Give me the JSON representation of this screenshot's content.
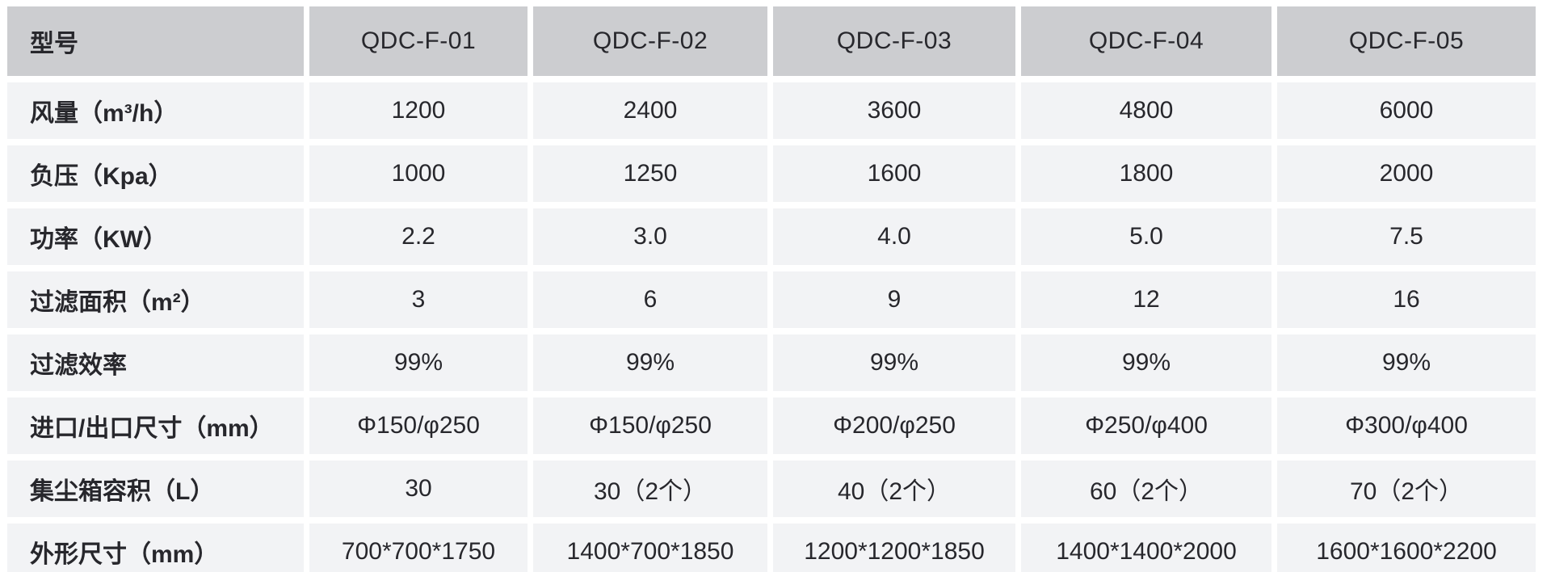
{
  "table": {
    "header": {
      "label": "型号",
      "models": [
        "QDC-F-01",
        "QDC-F-02",
        "QDC-F-03",
        "QDC-F-04",
        "QDC-F-05"
      ]
    },
    "rows": [
      {
        "label": "风量（m³/h）",
        "values": [
          "1200",
          "2400",
          "3600",
          "4800",
          "6000"
        ]
      },
      {
        "label": "负压（Kpa）",
        "values": [
          "1000",
          "1250",
          "1600",
          "1800",
          "2000"
        ]
      },
      {
        "label": "功率（KW）",
        "values": [
          "2.2",
          "3.0",
          "4.0",
          "5.0",
          "7.5"
        ]
      },
      {
        "label": "过滤面积（m²）",
        "values": [
          "3",
          "6",
          "9",
          "12",
          "16"
        ]
      },
      {
        "label": "过滤效率",
        "values": [
          "99%",
          "99%",
          "99%",
          "99%",
          "99%"
        ]
      },
      {
        "label": "进口/出口尺寸（mm）",
        "values": [
          "Φ150/φ250",
          "Φ150/φ250",
          "Φ200/φ250",
          "Φ250/φ400",
          "Φ300/φ400"
        ]
      },
      {
        "label": "集尘箱容积（L）",
        "values": [
          "30",
          "30（2个）",
          "40（2个）",
          "60（2个）",
          "70（2个）"
        ]
      },
      {
        "label": "外形尺寸（mm）",
        "values": [
          "700*700*1750",
          "1400*700*1850",
          "1200*1200*1850",
          "1400*1400*2000",
          "1600*1600*2200"
        ]
      }
    ],
    "colors": {
      "header_bg": "#cccdd0",
      "cell_bg": "#f2f3f5",
      "gutter": "#ffffff",
      "text": "#27272c"
    }
  },
  "chart_data": {
    "type": "table",
    "title": "",
    "columns": [
      "型号",
      "QDC-F-01",
      "QDC-F-02",
      "QDC-F-03",
      "QDC-F-04",
      "QDC-F-05"
    ],
    "rows": [
      [
        "风量（m³/h）",
        "1200",
        "2400",
        "3600",
        "4800",
        "6000"
      ],
      [
        "负压（Kpa）",
        "1000",
        "1250",
        "1600",
        "1800",
        "2000"
      ],
      [
        "功率（KW）",
        "2.2",
        "3.0",
        "4.0",
        "5.0",
        "7.5"
      ],
      [
        "过滤面积（m²）",
        "3",
        "6",
        "9",
        "12",
        "16"
      ],
      [
        "过滤效率",
        "99%",
        "99%",
        "99%",
        "99%",
        "99%"
      ],
      [
        "进口/出口尺寸（mm）",
        "Φ150/φ250",
        "Φ150/φ250",
        "Φ200/φ250",
        "Φ250/φ400",
        "Φ300/φ400"
      ],
      [
        "集尘箱容积（L）",
        "30",
        "30（2个）",
        "40（2个）",
        "60（2个）",
        "70（2个）"
      ],
      [
        "外形尺寸（mm）",
        "700*700*1750",
        "1400*700*1850",
        "1200*1200*1850",
        "1400*1400*2000",
        "1600*1600*2200"
      ]
    ]
  }
}
